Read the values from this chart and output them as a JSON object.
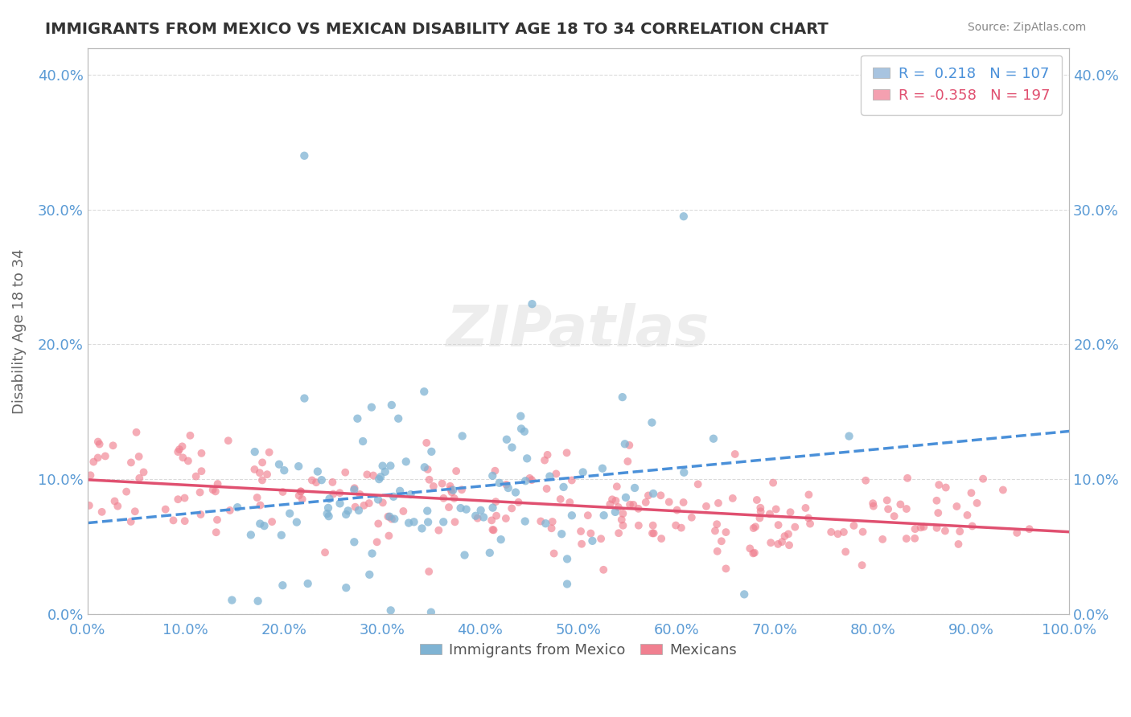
{
  "title": "IMMIGRANTS FROM MEXICO VS MEXICAN DISABILITY AGE 18 TO 34 CORRELATION CHART",
  "source_text": "Source: ZipAtlas.com",
  "xlabel": "",
  "ylabel": "Disability Age 18 to 34",
  "watermark": "ZIPatlas",
  "legend_entries": [
    {
      "label": "R =  0.218   N = 107",
      "patch_color": "#a8c4e0",
      "text_color": "#4a90d9"
    },
    {
      "label": "R = -0.358   N = 197",
      "patch_color": "#f4a0b0",
      "text_color": "#e05070"
    }
  ],
  "legend_labels_bottom": [
    "Immigrants from Mexico",
    "Mexicans"
  ],
  "blue_color": "#7fb3d3",
  "pink_color": "#f08090",
  "blue_line_color": "#4a90d9",
  "pink_line_color": "#e05070",
  "xlim": [
    0.0,
    1.0
  ],
  "ylim": [
    0.0,
    0.42
  ],
  "yticks": [
    0.0,
    0.1,
    0.2,
    0.3,
    0.4
  ],
  "xticks": [
    0.0,
    0.1,
    0.2,
    0.3,
    0.4,
    0.5,
    0.6,
    0.7,
    0.8,
    0.9,
    1.0
  ],
  "blue_R": 0.218,
  "blue_N": 107,
  "pink_R": -0.358,
  "pink_N": 197,
  "background_color": "#ffffff",
  "grid_color": "#cccccc",
  "title_color": "#333333",
  "tick_color": "#5b9bd5"
}
